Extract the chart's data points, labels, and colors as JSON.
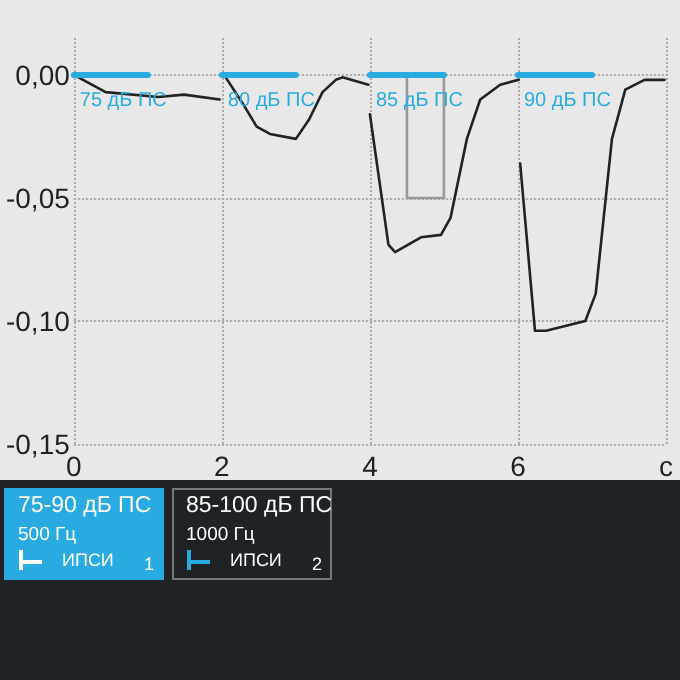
{
  "chart_data": [
    {
      "type": "line",
      "xlim": [
        0,
        8
      ],
      "ylim": [
        -0.15,
        0.015
      ],
      "xticks": [
        0,
        2,
        4,
        6,
        {
          "value": 8,
          "label": "с"
        }
      ],
      "yticks": [
        {
          "value": 0,
          "label": "0,00"
        },
        {
          "value": -0.05,
          "label": "-0,05"
        },
        {
          "value": -0.1,
          "label": "-0,10"
        },
        {
          "value": -0.15,
          "label": "-0,15"
        }
      ],
      "grid": true,
      "legend": false,
      "line_style": "solid",
      "series": [
        {
          "color": "#222222",
          "x": [
            0,
            0.43,
            1.14,
            1.49,
            1.97,
            2.0,
            2.03,
            2.29,
            2.47,
            2.65,
            3.0,
            3.18,
            3.36,
            3.54,
            3.63,
            3.98,
            3.99,
            4.0,
            4.25,
            4.34,
            4.69,
            4.96,
            5.09,
            5.31,
            5.49,
            5.76,
            6.01,
            6.02,
            6.03,
            6.23,
            6.38,
            6.91,
            7.05,
            7.27,
            7.45,
            7.71,
            7.98
          ],
          "values": [
            0,
            -0.007,
            -0.009,
            -0.008,
            -0.01,
            null,
            0,
            -0.012,
            -0.021,
            -0.024,
            -0.026,
            -0.018,
            -0.007,
            -0.002,
            -0.001,
            -0.004,
            null,
            -0.016,
            -0.069,
            -0.072,
            -0.066,
            -0.065,
            -0.058,
            -0.026,
            -0.01,
            -0.004,
            -0.002,
            null,
            -0.036,
            -0.104,
            -0.104,
            -0.1,
            -0.089,
            -0.026,
            -0.006,
            -0.002,
            -0.002
          ]
        },
        {
          "color": "#999999",
          "x": [
            4.5,
            4.5,
            5,
            5
          ],
          "values": [
            0,
            -0.05,
            -0.05,
            0
          ]
        },
        {
          "name": "75 дБ ПС",
          "color": "#29abe2",
          "x": [
            0,
            1
          ],
          "values": [
            0,
            0
          ]
        },
        {
          "name": "80 дБ ПС",
          "color": "#29abe2",
          "x": [
            2,
            3
          ],
          "values": [
            0,
            0
          ]
        },
        {
          "name": "85 дБ ПС",
          "color": "#29abe2",
          "x": [
            4,
            5
          ],
          "values": [
            0,
            0
          ]
        },
        {
          "name": "90 дБ ПС",
          "color": "#29abe2",
          "x": [
            6,
            7
          ],
          "values": [
            0,
            0
          ]
        }
      ]
    },
    {
      "type": "other",
      "title": "75-90 дБ ПС",
      "color": "#29abe2",
      "annotations": [
        "500 Гц",
        "ИПСИ",
        "1"
      ]
    },
    {
      "type": "other",
      "title": "85-100 дБ ПС",
      "color": "#1f2326",
      "annotations": [
        "1000 Гц",
        "ИПСИ",
        "2"
      ]
    }
  ]
}
